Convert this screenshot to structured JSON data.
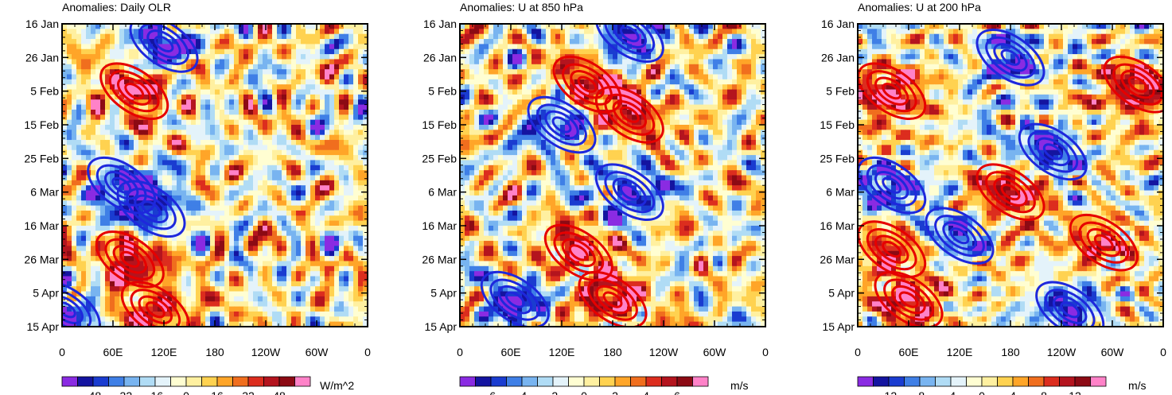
{
  "chart_data": [
    {
      "type": "heatmap",
      "title": "Anomalies: Daily OLR",
      "x_ticks": [
        "0",
        "60E",
        "120E",
        "180",
        "120W",
        "60W",
        "0"
      ],
      "y_ticks": [
        "16 Jan",
        "26 Jan",
        "5 Feb",
        "15 Feb",
        "25 Feb",
        "6 Mar",
        "16 Mar",
        "26 Mar",
        "5 Apr",
        "15 Apr"
      ],
      "colorbar": {
        "labels": [
          "-48",
          "-32",
          "-16",
          "0",
          "16",
          "32",
          "48"
        ],
        "unit": "W/m^2",
        "range": [
          -60,
          60
        ]
      },
      "contours": {
        "red": [
          {
            "lon": 85,
            "day": 20
          },
          {
            "lon": 80,
            "day": 70
          },
          {
            "lon": 110,
            "day": 85
          }
        ],
        "blue": [
          {
            "lon": 70,
            "day": 48
          },
          {
            "lon": 105,
            "day": 55
          },
          {
            "lon": 120,
            "day": 6
          },
          {
            "lon": 5,
            "day": 85
          }
        ]
      }
    },
    {
      "type": "heatmap",
      "title": "Anomalies: U at 850 hPa",
      "x_ticks": [
        "0",
        "60E",
        "120E",
        "180",
        "120W",
        "60W",
        "0"
      ],
      "y_ticks": [
        "16 Jan",
        "26 Jan",
        "5 Feb",
        "15 Feb",
        "25 Feb",
        "6 Mar",
        "16 Mar",
        "26 Mar",
        "5 Apr",
        "15 Apr"
      ],
      "colorbar": {
        "labels": [
          "-6",
          "-4",
          "-2",
          "0",
          "2",
          "4",
          "6"
        ],
        "unit": "m/s",
        "range": [
          -7.5,
          7.5
        ]
      },
      "contours": {
        "red": [
          {
            "lon": 150,
            "day": 18
          },
          {
            "lon": 200,
            "day": 27
          },
          {
            "lon": 140,
            "day": 68
          },
          {
            "lon": 180,
            "day": 82
          }
        ],
        "blue": [
          {
            "lon": 120,
            "day": 30
          },
          {
            "lon": 200,
            "day": 50
          },
          {
            "lon": 65,
            "day": 82
          },
          {
            "lon": 200,
            "day": 3
          }
        ]
      }
    },
    {
      "type": "heatmap",
      "title": "Anomalies: U at 200 hPa",
      "x_ticks": [
        "0",
        "60E",
        "120E",
        "180",
        "120W",
        "60W",
        "0"
      ],
      "y_ticks": [
        "16 Jan",
        "26 Jan",
        "5 Feb",
        "15 Feb",
        "25 Feb",
        "6 Mar",
        "16 Mar",
        "26 Mar",
        "5 Apr",
        "15 Apr"
      ],
      "colorbar": {
        "labels": [
          "-12",
          "-8",
          "-4",
          "0",
          "4",
          "8",
          "12"
        ],
        "unit": "m/s",
        "range": [
          -15,
          15
        ]
      },
      "contours": {
        "red": [
          {
            "lon": 40,
            "day": 20
          },
          {
            "lon": 180,
            "day": 50
          },
          {
            "lon": 40,
            "day": 67
          },
          {
            "lon": 60,
            "day": 82
          },
          {
            "lon": 330,
            "day": 18
          },
          {
            "lon": 290,
            "day": 65
          }
        ],
        "blue": [
          {
            "lon": 230,
            "day": 38
          },
          {
            "lon": 40,
            "day": 48
          },
          {
            "lon": 120,
            "day": 63
          },
          {
            "lon": 250,
            "day": 85
          },
          {
            "lon": 180,
            "day": 10
          }
        ]
      }
    }
  ]
}
